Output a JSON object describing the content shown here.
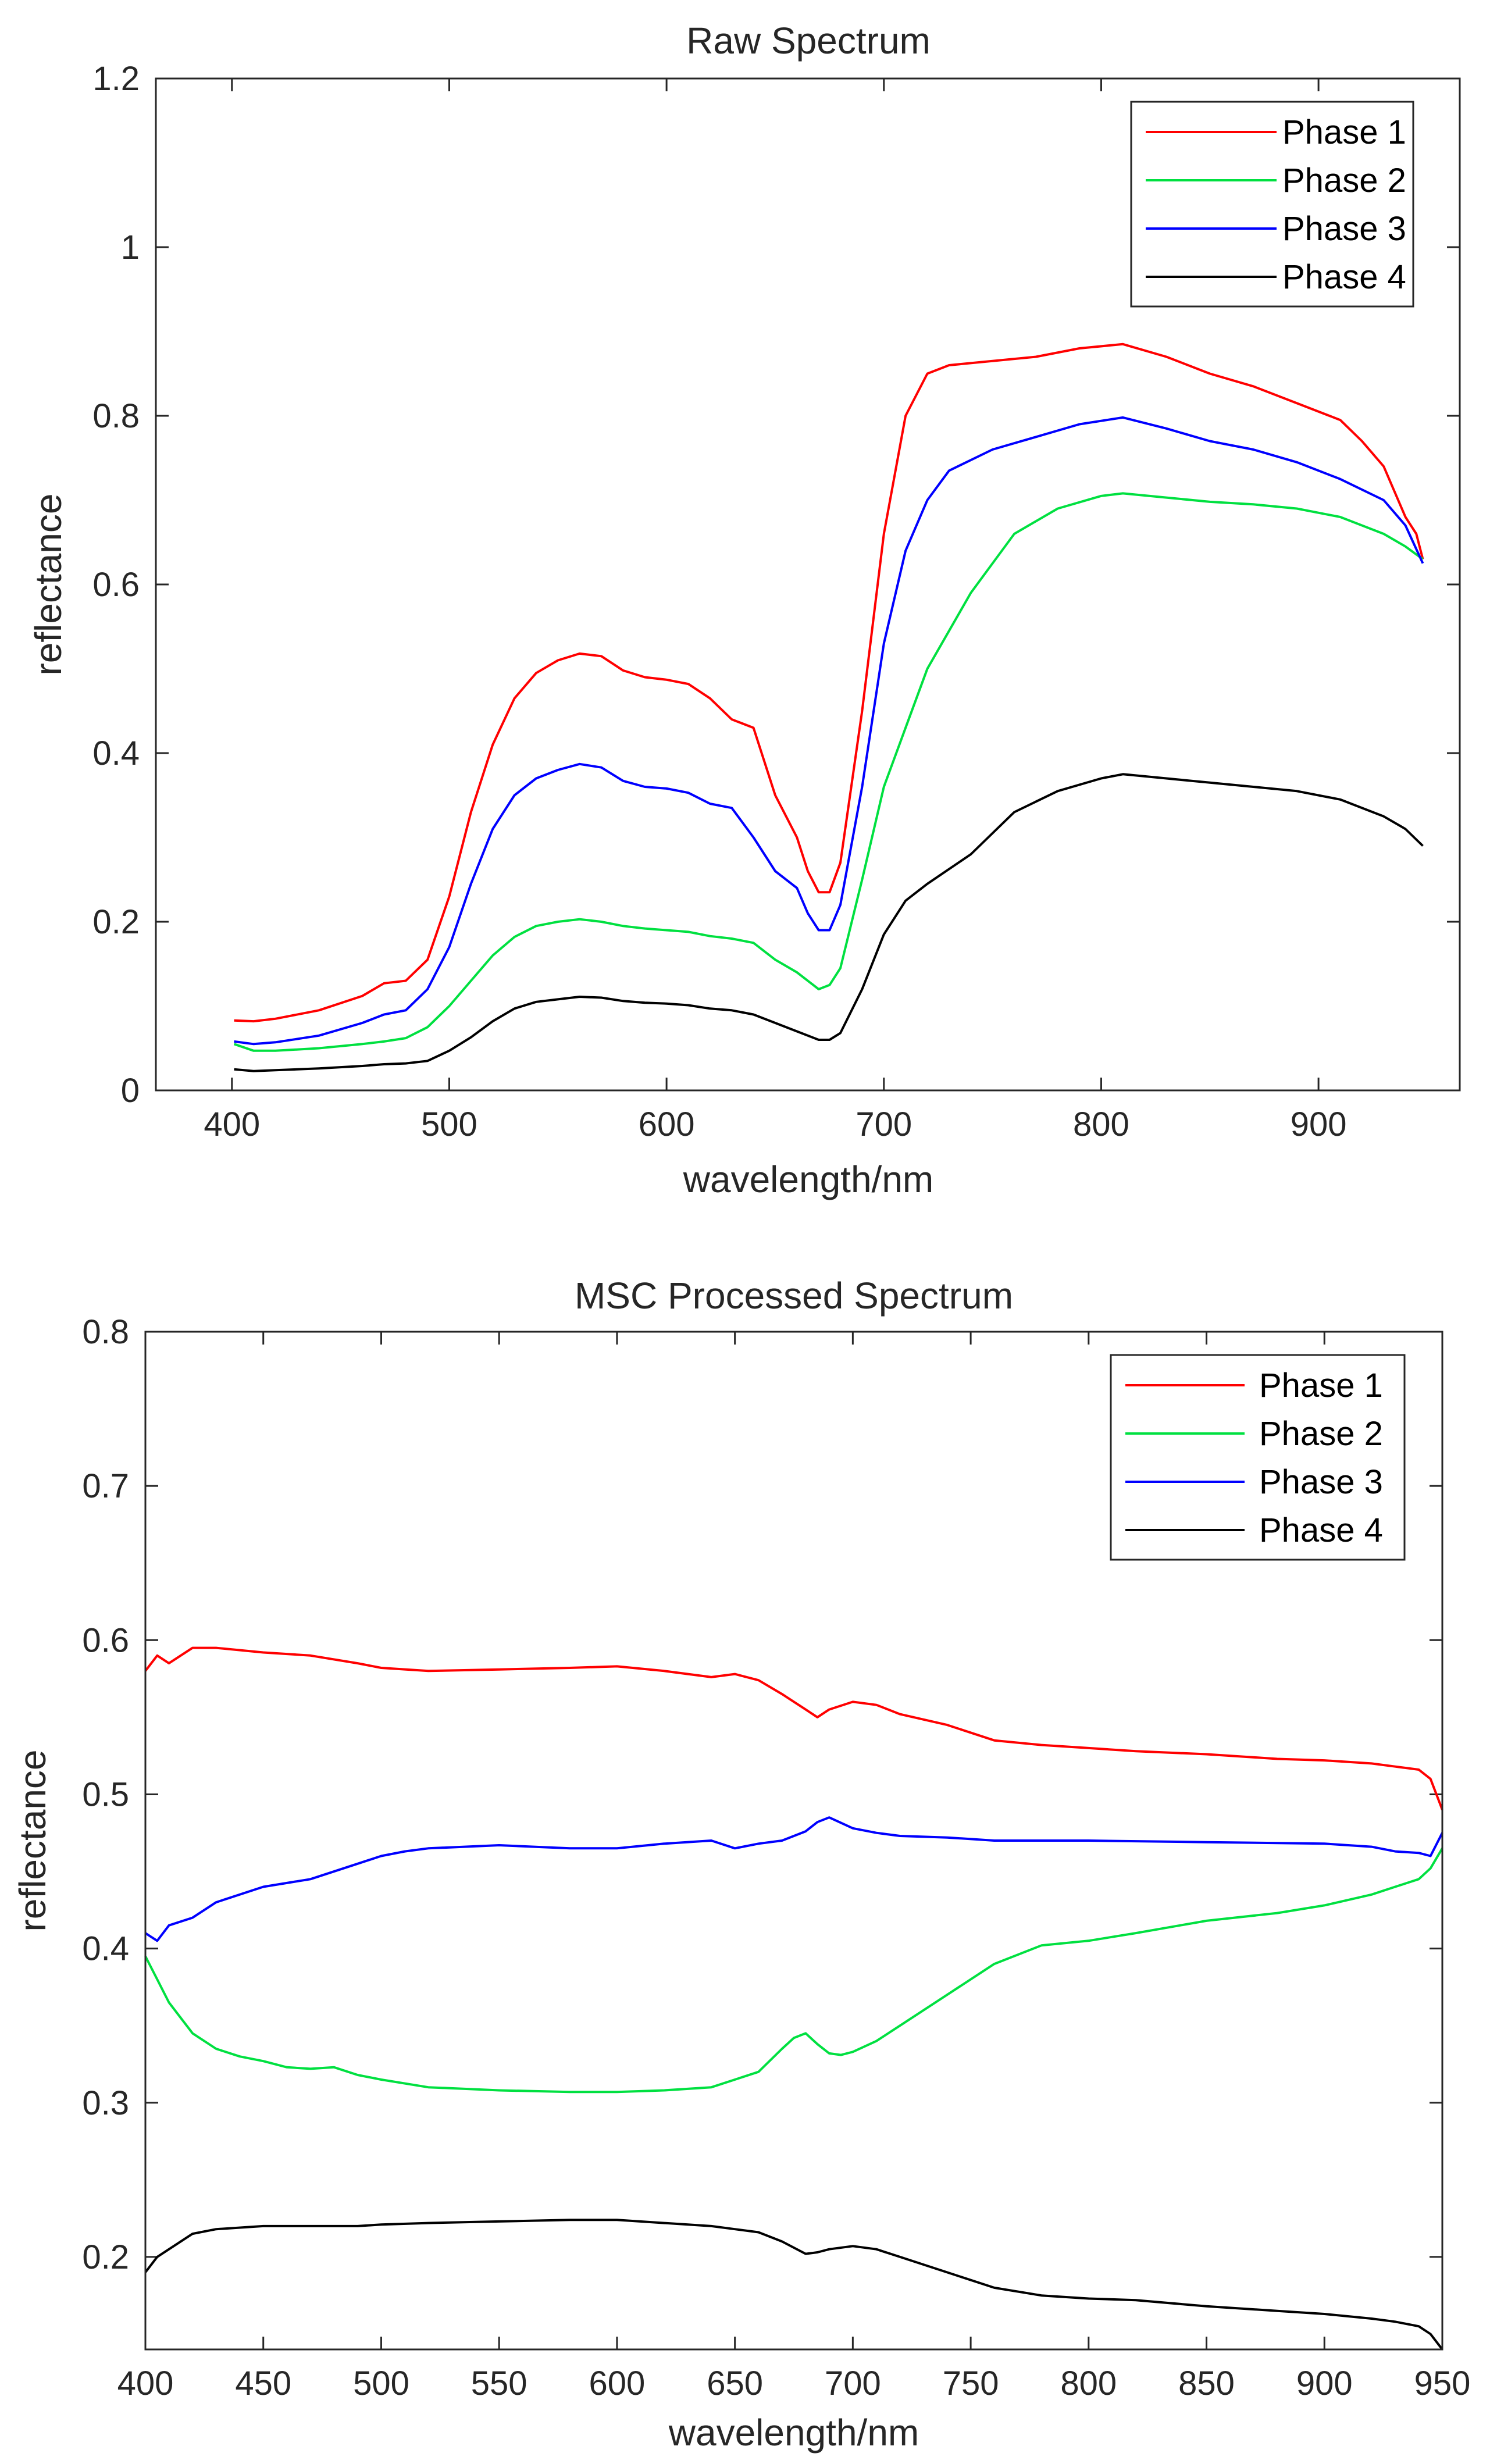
{
  "chart_data": [
    {
      "type": "line",
      "title": "Raw Spectrum",
      "xlabel": "wavelength/nm",
      "ylabel": "reflectance",
      "xlim": [
        365,
        965
      ],
      "ylim": [
        0,
        1.2
      ],
      "xticks": [
        400,
        500,
        600,
        700,
        800,
        900
      ],
      "yticks": [
        0,
        0.2,
        0.4,
        0.6,
        0.8,
        1,
        1.2
      ],
      "ytick_labels": [
        "0",
        "0.2",
        "0.4",
        "0.6",
        "0.8",
        "1",
        "1.2"
      ],
      "grid": false,
      "legend_position": "top-right",
      "series": [
        {
          "name": "Phase 1",
          "color": "#ff0000",
          "x": [
            401,
            410,
            420,
            440,
            460,
            470,
            480,
            490,
            500,
            510,
            520,
            530,
            540,
            550,
            560,
            570,
            580,
            590,
            600,
            610,
            620,
            630,
            640,
            650,
            660,
            665,
            670,
            675,
            680,
            690,
            700,
            710,
            720,
            730,
            750,
            770,
            790,
            810,
            830,
            850,
            870,
            890,
            910,
            920,
            930,
            935,
            940,
            945,
            948
          ],
          "y": [
            0.083,
            0.082,
            0.085,
            0.095,
            0.112,
            0.127,
            0.13,
            0.155,
            0.23,
            0.33,
            0.41,
            0.465,
            0.495,
            0.51,
            0.518,
            0.515,
            0.498,
            0.49,
            0.487,
            0.482,
            0.465,
            0.44,
            0.43,
            0.35,
            0.3,
            0.26,
            0.235,
            0.235,
            0.27,
            0.45,
            0.66,
            0.8,
            0.85,
            0.86,
            0.865,
            0.87,
            0.88,
            0.885,
            0.87,
            0.85,
            0.835,
            0.815,
            0.795,
            0.77,
            0.74,
            0.71,
            0.68,
            0.66,
            0.63
          ]
        },
        {
          "name": "Phase 2",
          "color": "#00e040",
          "x": [
            401,
            410,
            420,
            440,
            460,
            470,
            480,
            490,
            500,
            510,
            520,
            530,
            540,
            550,
            560,
            570,
            580,
            590,
            600,
            610,
            620,
            630,
            640,
            650,
            660,
            670,
            675,
            680,
            690,
            700,
            710,
            720,
            740,
            760,
            780,
            800,
            810,
            830,
            850,
            870,
            890,
            910,
            930,
            940,
            948
          ],
          "y": [
            0.055,
            0.047,
            0.047,
            0.05,
            0.055,
            0.058,
            0.062,
            0.075,
            0.1,
            0.13,
            0.16,
            0.182,
            0.195,
            0.2,
            0.203,
            0.2,
            0.195,
            0.192,
            0.19,
            0.188,
            0.183,
            0.18,
            0.175,
            0.155,
            0.14,
            0.12,
            0.125,
            0.145,
            0.25,
            0.36,
            0.43,
            0.5,
            0.59,
            0.66,
            0.69,
            0.705,
            0.708,
            0.703,
            0.698,
            0.695,
            0.69,
            0.68,
            0.66,
            0.645,
            0.63
          ]
        },
        {
          "name": "Phase 3",
          "color": "#0000ff",
          "x": [
            401,
            410,
            420,
            440,
            460,
            470,
            480,
            490,
            500,
            510,
            520,
            530,
            540,
            550,
            560,
            570,
            580,
            590,
            600,
            610,
            620,
            630,
            640,
            650,
            660,
            665,
            670,
            675,
            680,
            690,
            700,
            710,
            720,
            730,
            750,
            770,
            790,
            810,
            830,
            850,
            870,
            890,
            910,
            930,
            940,
            948
          ],
          "y": [
            0.058,
            0.055,
            0.057,
            0.065,
            0.08,
            0.09,
            0.095,
            0.12,
            0.17,
            0.245,
            0.31,
            0.35,
            0.37,
            0.38,
            0.387,
            0.383,
            0.367,
            0.36,
            0.358,
            0.353,
            0.34,
            0.335,
            0.3,
            0.26,
            0.24,
            0.21,
            0.19,
            0.19,
            0.22,
            0.36,
            0.53,
            0.64,
            0.7,
            0.735,
            0.76,
            0.775,
            0.79,
            0.798,
            0.785,
            0.77,
            0.76,
            0.745,
            0.725,
            0.7,
            0.67,
            0.625
          ]
        },
        {
          "name": "Phase 4",
          "color": "#000000",
          "x": [
            401,
            410,
            420,
            440,
            460,
            470,
            480,
            490,
            500,
            510,
            520,
            530,
            540,
            550,
            560,
            570,
            580,
            590,
            600,
            610,
            620,
            630,
            640,
            650,
            660,
            670,
            675,
            680,
            690,
            700,
            710,
            720,
            740,
            760,
            780,
            800,
            810,
            830,
            850,
            870,
            890,
            910,
            930,
            940,
            948
          ],
          "y": [
            0.025,
            0.023,
            0.024,
            0.026,
            0.029,
            0.031,
            0.032,
            0.035,
            0.047,
            0.063,
            0.082,
            0.097,
            0.105,
            0.108,
            0.111,
            0.11,
            0.106,
            0.104,
            0.103,
            0.101,
            0.097,
            0.095,
            0.09,
            0.08,
            0.07,
            0.06,
            0.06,
            0.068,
            0.12,
            0.185,
            0.225,
            0.245,
            0.28,
            0.33,
            0.355,
            0.37,
            0.375,
            0.37,
            0.365,
            0.36,
            0.355,
            0.345,
            0.325,
            0.31,
            0.29
          ]
        }
      ]
    },
    {
      "type": "line",
      "title": "MSC Processed Spectrum",
      "xlabel": "wavelength/nm",
      "ylabel": "reflectance",
      "xlim": [
        400,
        950
      ],
      "ylim": [
        0.14,
        0.8
      ],
      "xticks": [
        400,
        450,
        500,
        550,
        600,
        650,
        700,
        750,
        800,
        850,
        900,
        950
      ],
      "yticks": [
        0.2,
        0.3,
        0.4,
        0.5,
        0.6,
        0.7,
        0.8
      ],
      "ytick_labels": [
        "0.2",
        "0.3",
        "0.4",
        "0.5",
        "0.6",
        "0.7",
        "0.8"
      ],
      "grid": false,
      "legend_position": "top-right",
      "series": [
        {
          "name": "Phase 1",
          "color": "#ff0000",
          "x": [
            400,
            405,
            410,
            420,
            430,
            450,
            470,
            490,
            500,
            520,
            550,
            580,
            600,
            620,
            640,
            650,
            660,
            670,
            680,
            685,
            690,
            700,
            710,
            720,
            740,
            760,
            780,
            800,
            820,
            850,
            880,
            900,
            920,
            930,
            940,
            945,
            950
          ],
          "y": [
            0.58,
            0.59,
            0.585,
            0.595,
            0.595,
            0.592,
            0.59,
            0.585,
            0.582,
            0.58,
            0.581,
            0.582,
            0.583,
            0.58,
            0.576,
            0.578,
            0.574,
            0.565,
            0.555,
            0.55,
            0.555,
            0.56,
            0.558,
            0.552,
            0.545,
            0.535,
            0.532,
            0.53,
            0.528,
            0.526,
            0.523,
            0.522,
            0.52,
            0.518,
            0.516,
            0.51,
            0.49
          ]
        },
        {
          "name": "Phase 2",
          "color": "#00e040",
          "x": [
            400,
            405,
            410,
            420,
            430,
            440,
            450,
            460,
            470,
            480,
            490,
            500,
            520,
            550,
            580,
            600,
            620,
            640,
            650,
            660,
            670,
            675,
            680,
            685,
            690,
            695,
            700,
            710,
            720,
            740,
            760,
            780,
            800,
            820,
            850,
            880,
            900,
            920,
            930,
            940,
            945,
            950
          ],
          "y": [
            0.395,
            0.38,
            0.365,
            0.345,
            0.335,
            0.33,
            0.327,
            0.323,
            0.322,
            0.323,
            0.318,
            0.315,
            0.31,
            0.308,
            0.307,
            0.307,
            0.308,
            0.31,
            0.315,
            0.32,
            0.335,
            0.342,
            0.345,
            0.338,
            0.332,
            0.331,
            0.333,
            0.34,
            0.35,
            0.37,
            0.39,
            0.402,
            0.405,
            0.41,
            0.418,
            0.423,
            0.428,
            0.435,
            0.44,
            0.445,
            0.452,
            0.465
          ]
        },
        {
          "name": "Phase 3",
          "color": "#0000ff",
          "x": [
            400,
            405,
            410,
            420,
            430,
            450,
            470,
            490,
            500,
            510,
            520,
            550,
            580,
            600,
            620,
            640,
            650,
            660,
            670,
            680,
            685,
            690,
            700,
            710,
            720,
            740,
            760,
            780,
            800,
            850,
            900,
            920,
            930,
            940,
            945,
            950
          ],
          "y": [
            0.41,
            0.405,
            0.415,
            0.42,
            0.43,
            0.44,
            0.445,
            0.455,
            0.46,
            0.463,
            0.465,
            0.467,
            0.465,
            0.465,
            0.468,
            0.47,
            0.465,
            0.468,
            0.47,
            0.476,
            0.482,
            0.485,
            0.478,
            0.475,
            0.473,
            0.472,
            0.47,
            0.47,
            0.47,
            0.469,
            0.468,
            0.466,
            0.463,
            0.462,
            0.46,
            0.475
          ]
        },
        {
          "name": "Phase 4",
          "color": "#000000",
          "x": [
            400,
            405,
            410,
            420,
            430,
            450,
            470,
            490,
            500,
            520,
            550,
            580,
            600,
            620,
            640,
            650,
            660,
            670,
            680,
            685,
            690,
            700,
            710,
            720,
            740,
            760,
            780,
            800,
            820,
            850,
            880,
            900,
            920,
            930,
            940,
            945,
            950
          ],
          "y": [
            0.19,
            0.2,
            0.205,
            0.215,
            0.218,
            0.22,
            0.22,
            0.22,
            0.221,
            0.222,
            0.223,
            0.224,
            0.224,
            0.222,
            0.22,
            0.218,
            0.216,
            0.21,
            0.202,
            0.203,
            0.205,
            0.207,
            0.205,
            0.2,
            0.19,
            0.18,
            0.175,
            0.173,
            0.172,
            0.168,
            0.165,
            0.163,
            0.16,
            0.158,
            0.155,
            0.15,
            0.14
          ]
        }
      ]
    }
  ]
}
